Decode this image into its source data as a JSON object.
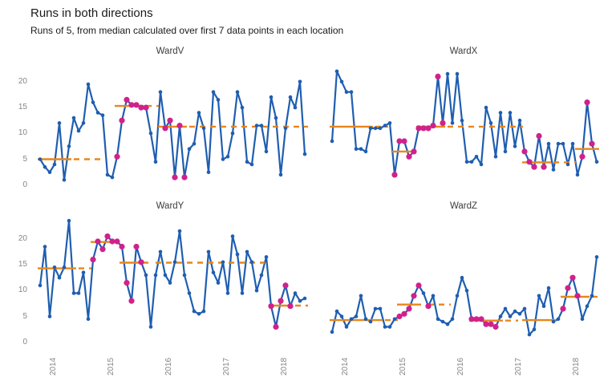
{
  "header": {
    "title": "Runs in both directions",
    "subtitle": "Runs of 5, from median calculated over first 7 data points in each location"
  },
  "colors": {
    "line": "#1f5eb0",
    "point": "#1f5eb0",
    "signal_point": "#d0218c",
    "median_line": "#e8861d",
    "axis_text": "#858585",
    "facet_title_text": "#3c3c3c"
  },
  "axes": {
    "x_tick_labels": [
      "2014",
      "2015",
      "2016",
      "2017",
      "2018"
    ],
    "x_tick_indices": [
      3,
      15,
      27,
      39,
      51
    ],
    "y_tick_values": [
      0,
      5,
      10,
      15,
      20
    ],
    "y_range": [
      -1.5,
      24
    ],
    "grid": "off",
    "legend": "none"
  },
  "chart_data": {
    "type": "line",
    "title": "Runs in both directions",
    "subtitle": "Runs of 5, from median calculated over first 7 data points in each location",
    "x_unit": "month",
    "x_start": "2013-10",
    "facets": [
      {
        "name": "WardV",
        "values": [
          5,
          3.5,
          2.5,
          4,
          12,
          1,
          7.5,
          13,
          10.5,
          12,
          19.5,
          16,
          14,
          13.5,
          2,
          1.5,
          5.5,
          12.5,
          16.5,
          15.5,
          15.5,
          15,
          15,
          10,
          4.5,
          18,
          11,
          12.5,
          1.5,
          11.5,
          1.5,
          7,
          8,
          14,
          11,
          2.5,
          18,
          16.5,
          5,
          5.5,
          10,
          18,
          15,
          4.5,
          4,
          11.5,
          11.5,
          6.5,
          17,
          13,
          2,
          11,
          17,
          15,
          20,
          6
        ],
        "signal_indices": [
          16,
          17,
          18,
          19,
          20,
          21,
          22,
          26,
          27,
          28,
          29,
          30
        ],
        "medians": [
          {
            "value": 5,
            "solid": [
              0,
              6
            ],
            "dashed": [
              [
                7,
                12
              ]
            ]
          },
          {
            "value": 15.3,
            "solid": [
              16,
              21
            ],
            "dashed": [
              [
                22,
                24
              ]
            ]
          },
          {
            "value": 11.3,
            "solid": [
              25,
              30
            ],
            "dashed": [
              [
                31,
                55
              ]
            ]
          }
        ]
      },
      {
        "name": "WardX",
        "values": [
          8.5,
          22,
          20,
          18,
          18,
          7,
          7,
          6.5,
          11,
          11,
          11,
          11.5,
          12,
          2,
          8.5,
          8.5,
          5.5,
          6.5,
          11,
          11,
          11,
          11.5,
          21,
          12,
          21.5,
          12,
          21.5,
          12.5,
          4.5,
          4.5,
          5.5,
          4,
          15,
          12,
          5.5,
          14,
          6.5,
          14,
          7.5,
          12.5,
          6.5,
          4.5,
          3.5,
          9.5,
          3.5,
          8,
          3,
          8,
          8,
          4,
          8,
          2,
          5.5,
          16,
          8,
          4.5
        ],
        "signal_indices": [
          13,
          14,
          15,
          16,
          17,
          18,
          19,
          20,
          21,
          22,
          23,
          40,
          41,
          42,
          43,
          44,
          52,
          53,
          54
        ],
        "medians": [
          {
            "value": 11.3,
            "solid": [
              0,
              8
            ],
            "dashed": [
              [
                9,
                11
              ]
            ]
          },
          {
            "value": 6.5,
            "solid": [
              13,
              17
            ],
            "dashed": []
          },
          {
            "value": 11.3,
            "solid": [
              18,
              23
            ],
            "dashed": [
              [
                24,
                39
              ]
            ]
          },
          {
            "value": 4.4,
            "solid": [
              40,
              45
            ],
            "dashed": [
              [
                46,
                50
              ]
            ]
          },
          {
            "value": 7,
            "solid": [
              51,
              55
            ],
            "dashed": []
          }
        ]
      },
      {
        "name": "WardY",
        "values": [
          11,
          18.5,
          5,
          14.5,
          12.5,
          14.5,
          23.5,
          9.5,
          9.5,
          13.5,
          4.5,
          16,
          19.5,
          18,
          20.5,
          19.5,
          19.5,
          18.5,
          11.5,
          8,
          18.5,
          15.5,
          13,
          3,
          13,
          17.5,
          13,
          11.5,
          15.5,
          21.5,
          13,
          9.5,
          6,
          5.5,
          6,
          17.5,
          13.5,
          11.5,
          15.5,
          9.5,
          20.5,
          17,
          9.5,
          17.5,
          15.5,
          10,
          13,
          16.5,
          7,
          3,
          8,
          11,
          7,
          9.5,
          8,
          8.5
        ],
        "signal_indices": [
          11,
          12,
          13,
          14,
          15,
          16,
          17,
          18,
          19,
          20,
          21,
          48,
          49,
          50,
          51,
          52
        ],
        "medians": [
          {
            "value": 14.3,
            "solid": [
              0,
              7
            ],
            "dashed": [
              [
                8,
                10
              ]
            ]
          },
          {
            "value": 19.4,
            "solid": [
              11,
              16
            ],
            "dashed": []
          },
          {
            "value": 15.4,
            "solid": [
              17,
              22
            ],
            "dashed": [
              [
                24,
                46
              ]
            ]
          },
          {
            "value": 7.1,
            "solid": [
              48,
              52
            ],
            "dashed": [
              [
                53,
                55
              ]
            ]
          }
        ]
      },
      {
        "name": "WardZ",
        "values": [
          2,
          6,
          5,
          3,
          4.5,
          5,
          9,
          4.5,
          4,
          6.5,
          6.5,
          3,
          3,
          4.5,
          5,
          5.5,
          6.5,
          9,
          11,
          9.5,
          7,
          9,
          4.5,
          4,
          3.5,
          4.5,
          9,
          12.5,
          10,
          4.5,
          4.5,
          4.5,
          3.5,
          3.5,
          3,
          5,
          6.5,
          5,
          6,
          5.5,
          6.5,
          1.5,
          2.5,
          9,
          7,
          10.5,
          4,
          4.5,
          6.5,
          10.5,
          12.5,
          9,
          4.5,
          7,
          9,
          16.5
        ],
        "signal_indices": [
          14,
          15,
          16,
          17,
          18,
          20,
          29,
          30,
          31,
          32,
          33,
          34,
          48,
          49,
          50,
          51
        ],
        "medians": [
          {
            "value": 4.3,
            "solid": [
              0,
              10
            ],
            "dashed": [
              [
                11,
                13
              ]
            ]
          },
          {
            "value": 7.3,
            "solid": [
              14,
              18
            ],
            "dashed": [
              [
                20,
                24
              ]
            ]
          },
          {
            "value": 4.2,
            "solid": [
              29,
              35
            ],
            "dashed": [
              [
                36,
                38
              ]
            ]
          },
          {
            "value": 4.3,
            "solid": [
              40,
              46
            ],
            "dashed": []
          },
          {
            "value": 8.8,
            "solid": [
              48,
              53
            ],
            "dashed": [
              [
                54,
                55
              ]
            ]
          }
        ]
      }
    ]
  }
}
